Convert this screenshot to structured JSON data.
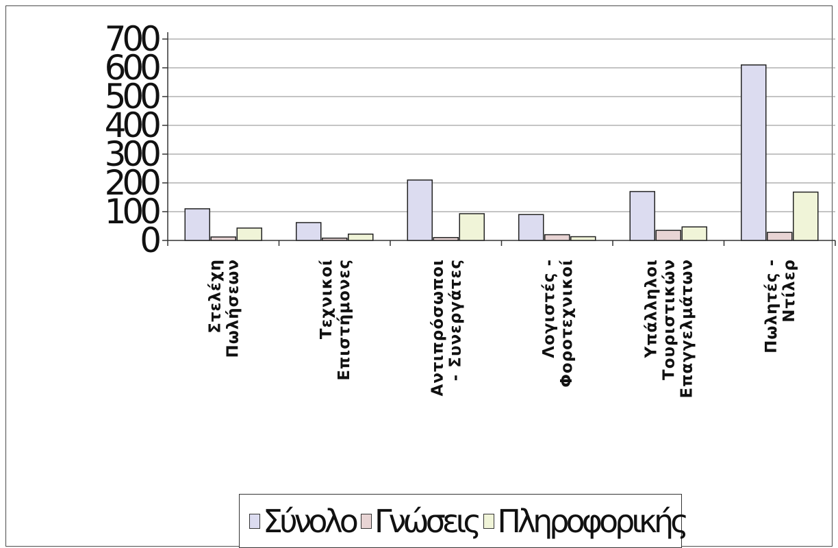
{
  "chart_data": {
    "type": "bar",
    "categories": [
      [
        "Στελέχη",
        "Πωλήσεων"
      ],
      [
        "Τεχνικοί",
        "Επιστήμονες"
      ],
      [
        "Αντιπρόσωποι",
        "- Συνεργάτες"
      ],
      [
        "Λογιστές -",
        "Φοροτεχνικοί"
      ],
      [
        "Υπάλληλοι",
        "Τουριστικών",
        "Επαγγελμάτων"
      ],
      [
        "Πωλητές -",
        "Ντίλερ"
      ]
    ],
    "series": [
      {
        "name": "Σύνολο",
        "color": "#dcdcf0",
        "values": [
          110,
          62,
          210,
          90,
          170,
          610
        ]
      },
      {
        "name": "Γνώσεις",
        "color": "#e8d4d4",
        "values": [
          12,
          8,
          10,
          20,
          35,
          28
        ]
      },
      {
        "name": "Πληροφορικής",
        "color": "#f0f4d8",
        "values": [
          43,
          22,
          93,
          13,
          47,
          168
        ]
      }
    ],
    "yticks": [
      "700",
      "600",
      "500",
      "400",
      "300",
      "200",
      "100",
      "0"
    ],
    "ylim": [
      0,
      700
    ],
    "grid": true,
    "legend_position": "bottom"
  }
}
